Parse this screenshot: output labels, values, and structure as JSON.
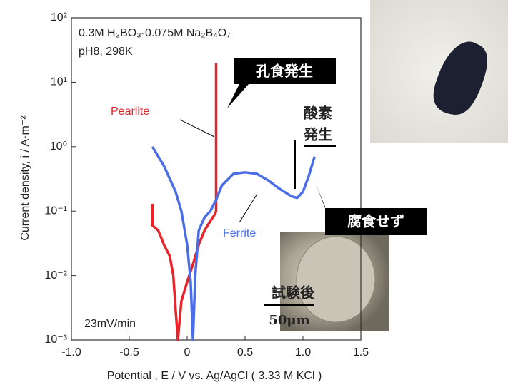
{
  "chart_data": {
    "type": "line",
    "title": "0.3M H₃BO₃-0.075M Na₂B₄O₇",
    "subtitle": "pH8, 298K",
    "x_label": "Potential , E / V vs. Ag/AgCl ( 3.33 M KCl )",
    "y_label": "Current density, i / A·m⁻²",
    "xlim": [
      -1,
      1.5
    ],
    "xticks": [
      {
        "value": -1,
        "label": "-1.0"
      },
      -0.5,
      0,
      0.5,
      {
        "value": 1,
        "label": "1.0"
      },
      1.5
    ],
    "ylim": [
      0.001,
      100
    ],
    "yticks": [
      {
        "value": 0.001,
        "label": "10⁻³"
      },
      {
        "value": 0.01,
        "label": "10⁻²"
      },
      {
        "value": 0.1,
        "label": "10⁻¹"
      },
      {
        "value": 1,
        "label": "10⁰"
      },
      {
        "value": 10,
        "label": "10¹"
      },
      {
        "value": 100,
        "label": "10²"
      }
    ],
    "log_y": true,
    "series": [
      {
        "name": "Pearlite",
        "color": "#e8232a",
        "x": [
          -0.3,
          -0.3,
          -0.25,
          -0.2,
          -0.15,
          -0.12,
          -0.1,
          -0.08,
          -0.05,
          0.0,
          0.05,
          0.1,
          0.15,
          0.2,
          0.24,
          0.25,
          0.25,
          0.25,
          0.25
        ],
        "values": [
          0.13,
          0.06,
          0.05,
          0.03,
          0.02,
          0.01,
          0.003,
          0.001,
          0.004,
          0.008,
          0.015,
          0.03,
          0.05,
          0.07,
          0.09,
          0.1,
          1.5,
          5,
          20
        ]
      },
      {
        "name": "Ferrite",
        "color": "#4a6ee8",
        "x": [
          -0.3,
          -0.2,
          -0.1,
          -0.05,
          0,
          0.03,
          0.05,
          0.07,
          0.1,
          0.15,
          0.2,
          0.25,
          0.3,
          0.4,
          0.5,
          0.6,
          0.7,
          0.8,
          0.9,
          0.95,
          1.0,
          1.05,
          1.1
        ],
        "values": [
          1.0,
          0.5,
          0.2,
          0.1,
          0.03,
          0.008,
          0.001,
          0.01,
          0.05,
          0.08,
          0.1,
          0.15,
          0.25,
          0.38,
          0.4,
          0.38,
          0.3,
          0.22,
          0.17,
          0.16,
          0.2,
          0.35,
          0.7
        ]
      }
    ],
    "annotations": [
      "23mV/min",
      "孔食発生",
      "腐食せず",
      "酸素",
      "発生",
      "試験後",
      "50μm"
    ]
  }
}
